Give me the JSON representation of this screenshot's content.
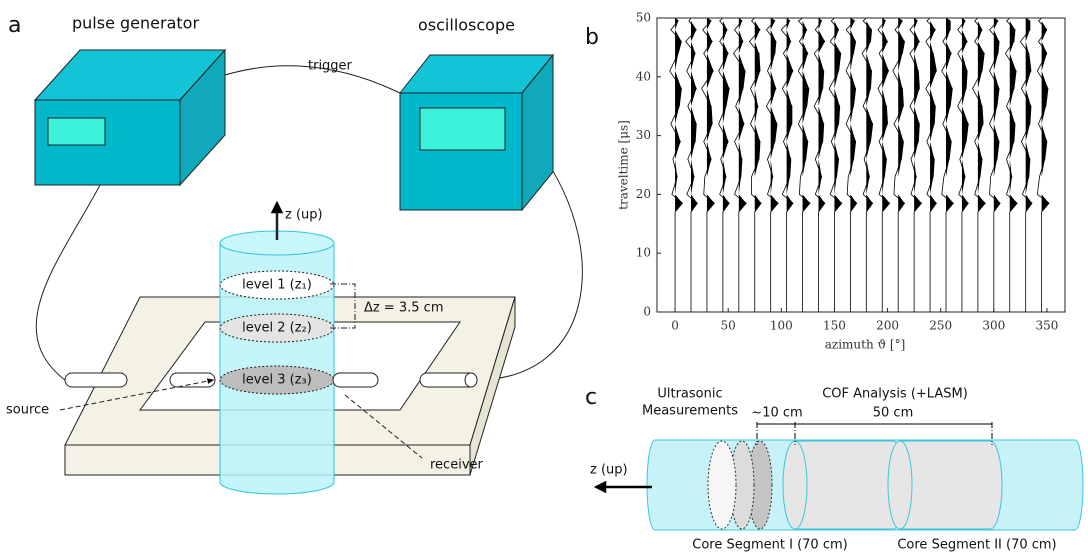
{
  "panel_labels": [
    "a",
    "b",
    "c"
  ],
  "diagram_a": {
    "pulse_generator": "pulse generator",
    "oscilloscope": "oscilloscope",
    "trigger": "trigger",
    "z_up": "z (up)",
    "levels": [
      "level 1 (z₁)",
      "level 2 (z₂)",
      "level 3 (z₃)"
    ],
    "delta_z": "Δz = 3.5 cm",
    "source": "source",
    "receiver": "receiver"
  },
  "chart_data": {
    "type": "wiggle",
    "xlabel": "azimuth ϑ [°]",
    "ylabel": "traveltime [μs]",
    "xlim": [
      -17,
      367
    ],
    "ylim": [
      0,
      50
    ],
    "xticks": [
      0,
      50,
      100,
      150,
      200,
      250,
      300,
      350
    ],
    "yticks": [
      0,
      10,
      20,
      30,
      40,
      50
    ],
    "color": "#000000",
    "t": [
      0,
      17,
      18.5,
      20,
      23,
      26,
      29,
      32,
      35,
      38,
      41,
      44,
      46,
      48,
      49.5,
      50
    ],
    "traces": [
      {
        "x": 0,
        "values": [
          0,
          0,
          7,
          -3,
          2,
          -2,
          5,
          -4,
          4,
          6,
          -5,
          3,
          6,
          -4,
          3,
          0
        ]
      },
      {
        "x": 15,
        "values": [
          0,
          0,
          6,
          -4,
          3,
          -3,
          4,
          5,
          -3,
          5,
          -4,
          4,
          -5,
          5,
          -2,
          0
        ]
      },
      {
        "x": 30,
        "values": [
          0,
          0,
          7,
          -3,
          -2,
          4,
          -3,
          5,
          4,
          -5,
          6,
          -3,
          5,
          -4,
          4,
          0
        ]
      },
      {
        "x": 45,
        "values": [
          0,
          0,
          6,
          -3,
          3,
          -2,
          5,
          -4,
          3,
          6,
          -4,
          5,
          -3,
          4,
          -3,
          0
        ]
      },
      {
        "x": 60,
        "values": [
          0,
          0,
          7,
          -4,
          2,
          3,
          -4,
          5,
          -3,
          4,
          6,
          -5,
          4,
          -4,
          3,
          0
        ]
      },
      {
        "x": 75,
        "values": [
          0,
          0,
          6,
          -3,
          -3,
          4,
          5,
          -4,
          3,
          -4,
          5,
          4,
          -5,
          5,
          -3,
          0
        ]
      },
      {
        "x": 90,
        "values": [
          0,
          0,
          7,
          -3,
          2,
          -3,
          4,
          6,
          -4,
          5,
          -3,
          4,
          5,
          -4,
          4,
          0
        ]
      },
      {
        "x": 105,
        "values": [
          0,
          0,
          6,
          -4,
          3,
          4,
          -3,
          5,
          5,
          -4,
          6,
          -3,
          4,
          -5,
          3,
          0
        ]
      },
      {
        "x": 120,
        "values": [
          0,
          0,
          7,
          -3,
          -2,
          3,
          5,
          -4,
          4,
          6,
          -4,
          5,
          -3,
          4,
          -4,
          0
        ]
      },
      {
        "x": 135,
        "values": [
          0,
          0,
          6,
          -3,
          3,
          -3,
          4,
          5,
          -4,
          4,
          5,
          -4,
          6,
          -3,
          3,
          0
        ]
      },
      {
        "x": 150,
        "values": [
          0,
          0,
          7,
          -4,
          2,
          4,
          -3,
          4,
          5,
          -5,
          4,
          6,
          -4,
          4,
          -3,
          0
        ]
      },
      {
        "x": 165,
        "values": [
          0,
          0,
          6,
          -3,
          -2,
          3,
          5,
          -4,
          3,
          5,
          -4,
          3,
          5,
          -4,
          4,
          0
        ]
      },
      {
        "x": 180,
        "values": [
          0,
          0,
          6,
          -3,
          3,
          -2,
          4,
          6,
          -3,
          4,
          5,
          -4,
          4,
          5,
          -3,
          0
        ]
      },
      {
        "x": 195,
        "values": [
          0,
          0,
          7,
          -3,
          2,
          4,
          -3,
          5,
          4,
          -4,
          6,
          -3,
          5,
          -4,
          3,
          0
        ]
      },
      {
        "x": 210,
        "values": [
          0,
          0,
          6,
          -4,
          -3,
          3,
          5,
          -4,
          5,
          4,
          -5,
          4,
          6,
          -3,
          4,
          0
        ]
      },
      {
        "x": 225,
        "values": [
          0,
          0,
          7,
          -3,
          2,
          -3,
          4,
          5,
          -4,
          5,
          4,
          -4,
          5,
          -4,
          3,
          0
        ]
      },
      {
        "x": 240,
        "values": [
          0,
          0,
          6,
          -3,
          3,
          4,
          -3,
          4,
          5,
          -4,
          6,
          3,
          -4,
          5,
          -3,
          0
        ]
      },
      {
        "x": 255,
        "values": [
          0,
          0,
          7,
          -4,
          -2,
          3,
          5,
          -3,
          4,
          6,
          -4,
          5,
          -3,
          4,
          4,
          0
        ]
      },
      {
        "x": 270,
        "values": [
          0,
          0,
          6,
          -3,
          3,
          -2,
          4,
          6,
          -4,
          4,
          5,
          -4,
          5,
          -4,
          3,
          0
        ]
      },
      {
        "x": 285,
        "values": [
          0,
          0,
          7,
          -3,
          2,
          4,
          -3,
          5,
          4,
          -5,
          4,
          6,
          -3,
          4,
          -3,
          0
        ]
      },
      {
        "x": 300,
        "values": [
          0,
          0,
          6,
          -4,
          -3,
          3,
          5,
          -4,
          3,
          5,
          -4,
          4,
          5,
          -4,
          4,
          0
        ]
      },
      {
        "x": 315,
        "values": [
          0,
          0,
          7,
          -3,
          2,
          -3,
          4,
          5,
          -3,
          4,
          6,
          -4,
          4,
          5,
          -3,
          0
        ]
      },
      {
        "x": 330,
        "values": [
          0,
          0,
          6,
          -3,
          3,
          4,
          -4,
          4,
          5,
          -4,
          5,
          3,
          -5,
          4,
          4,
          0
        ]
      },
      {
        "x": 345,
        "values": [
          0,
          0,
          7,
          -4,
          -2,
          3,
          5,
          -3,
          4,
          6,
          -4,
          5,
          -3,
          5,
          -3,
          0
        ]
      }
    ]
  },
  "diagram_c": {
    "ultrasonic_measurements": [
      "Ultrasonic",
      "Measurements"
    ],
    "cof_analysis": "COF Analysis (+LASM)",
    "ten_cm": "~10 cm",
    "fifty_cm": "50 cm",
    "z_up": "z (up)",
    "segment_1": "Core Segment I (70 cm)",
    "segment_2": "Core Segment II (70 cm)"
  }
}
